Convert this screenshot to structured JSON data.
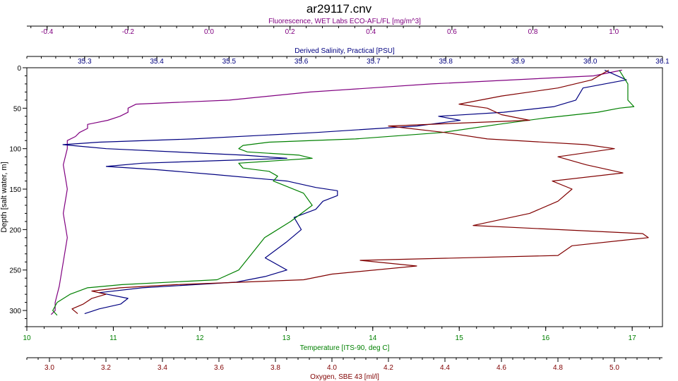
{
  "chart_data": {
    "type": "line",
    "title": "ar29117.cnv",
    "y_axis": {
      "label": "Depth [salt water, m]",
      "range": [
        0,
        320
      ],
      "inverted": true,
      "ticks": [
        0,
        50,
        100,
        150,
        200,
        250,
        300
      ]
    },
    "axes": {
      "fluorescence": {
        "label": "Fluorescence, WET Labs ECO-AFL/FL [mg/m^3]",
        "position": "top",
        "color": "#800080",
        "range": [
          -0.45,
          1.12
        ],
        "ticks": [
          -0.4,
          -0.2,
          0.0,
          0.2,
          0.4,
          0.6,
          0.8,
          1.0
        ],
        "tick_labels": [
          "-0.4",
          "-0.2",
          "0.0",
          "0.2",
          "0.4",
          "0.6",
          "0.8",
          "1.0"
        ]
      },
      "salinity": {
        "label": "Derived Salinity, Practical [PSU]",
        "position": "top",
        "color": "#000080",
        "range": [
          35.22,
          36.1
        ],
        "ticks": [
          35.3,
          35.4,
          35.5,
          35.6,
          35.7,
          35.8,
          35.9,
          36.0,
          36.1
        ],
        "tick_labels": [
          "35.3",
          "35.4",
          "35.5",
          "35.6",
          "35.7",
          "35.8",
          "35.9",
          "36.0",
          "36.1"
        ]
      },
      "temperature": {
        "label": "Temperature [ITS-90, deg C]",
        "position": "bottom",
        "color": "#008000",
        "range": [
          10,
          17.35
        ],
        "ticks": [
          10,
          11,
          12,
          13,
          14,
          15,
          16,
          17
        ],
        "tick_labels": [
          "10",
          "11",
          "12",
          "13",
          "14",
          "15",
          "16",
          "17"
        ]
      },
      "oxygen": {
        "label": "Oxygen, SBE 43 [ml/l]",
        "position": "bottom",
        "color": "#800000",
        "range": [
          2.92,
          5.17
        ],
        "ticks": [
          3.0,
          3.2,
          3.4,
          3.6,
          3.8,
          4.0,
          4.2,
          4.4,
          4.6,
          4.8,
          5.0
        ],
        "tick_labels": [
          "3.0",
          "3.2",
          "3.4",
          "3.6",
          "3.8",
          "4.0",
          "4.2",
          "4.4",
          "4.6",
          "4.8",
          "5.0"
        ]
      }
    },
    "series": [
      {
        "axis": "fluorescence",
        "color": "#800080",
        "depth": [
          3,
          10,
          20,
          30,
          40,
          45,
          50,
          55,
          60,
          65,
          70,
          75,
          80,
          85,
          90,
          100,
          120,
          150,
          180,
          210,
          240,
          270,
          290,
          300,
          305
        ],
        "values": [
          1.02,
          0.95,
          0.55,
          0.25,
          0.05,
          -0.18,
          -0.2,
          -0.2,
          -0.22,
          -0.25,
          -0.3,
          -0.3,
          -0.32,
          -0.33,
          -0.35,
          -0.35,
          -0.36,
          -0.35,
          -0.36,
          -0.35,
          -0.36,
          -0.37,
          -0.38,
          -0.38,
          -0.39
        ]
      },
      {
        "axis": "salinity",
        "color": "#000080",
        "depth": [
          3,
          15,
          25,
          40,
          48,
          55,
          60,
          65,
          72,
          80,
          88,
          92,
          95,
          100,
          108,
          112,
          118,
          122,
          126,
          132,
          140,
          148,
          152,
          158,
          165,
          175,
          185,
          200,
          215,
          235,
          250,
          258,
          265,
          272,
          278,
          285,
          292,
          298,
          304
        ],
        "values": [
          36.02,
          36.05,
          35.99,
          35.98,
          35.95,
          35.88,
          35.79,
          35.82,
          35.76,
          35.62,
          35.45,
          35.32,
          35.27,
          35.33,
          35.52,
          35.58,
          35.38,
          35.33,
          35.4,
          35.48,
          35.58,
          35.62,
          35.65,
          35.65,
          35.63,
          35.62,
          35.59,
          35.6,
          35.58,
          35.55,
          35.58,
          35.55,
          35.51,
          35.38,
          35.32,
          35.36,
          35.35,
          35.32,
          35.3
        ]
      },
      {
        "axis": "temperature",
        "color": "#008000",
        "depth": [
          3,
          20,
          40,
          48,
          50,
          55,
          62,
          70,
          80,
          88,
          92,
          96,
          100,
          104,
          108,
          112,
          118,
          124,
          128,
          134,
          140,
          155,
          170,
          190,
          210,
          230,
          250,
          262,
          268,
          272,
          280,
          290,
          300,
          306
        ],
        "values": [
          16.85,
          16.95,
          16.95,
          17.02,
          16.85,
          16.6,
          16.0,
          15.45,
          14.8,
          13.8,
          12.8,
          12.5,
          12.45,
          12.55,
          13.15,
          13.3,
          12.45,
          12.5,
          12.8,
          12.9,
          12.85,
          13.2,
          13.3,
          13.05,
          12.75,
          12.6,
          12.45,
          12.2,
          11.1,
          10.7,
          10.5,
          10.35,
          10.3,
          10.35
        ]
      },
      {
        "axis": "oxygen",
        "color": "#800000",
        "depth": [
          3,
          15,
          25,
          35,
          45,
          50,
          58,
          65,
          72,
          80,
          88,
          95,
          100,
          110,
          120,
          130,
          140,
          150,
          165,
          180,
          195,
          205,
          210,
          220,
          232,
          238,
          245,
          255,
          262,
          268,
          272,
          276,
          280,
          285,
          292,
          298,
          304
        ],
        "values": [
          4.98,
          4.92,
          4.8,
          4.6,
          4.45,
          4.55,
          4.6,
          4.7,
          4.2,
          4.4,
          4.55,
          4.9,
          5.0,
          4.8,
          4.9,
          5.03,
          4.78,
          4.85,
          4.8,
          4.7,
          4.5,
          5.1,
          5.12,
          4.85,
          4.8,
          4.1,
          4.3,
          4.0,
          3.9,
          3.45,
          3.25,
          3.15,
          3.2,
          3.15,
          3.12,
          3.08,
          3.1
        ]
      }
    ]
  }
}
